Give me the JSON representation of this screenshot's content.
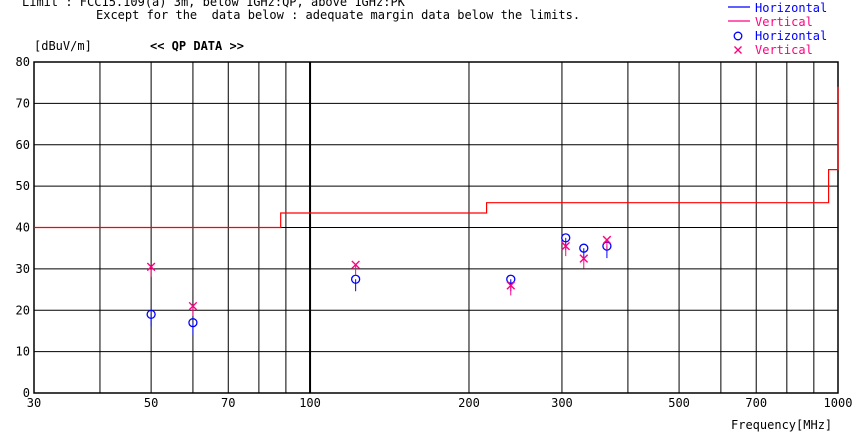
{
  "header": {
    "limit_line": "Limit : FCC15.109(a) 3m, below 1GHz:QP, above 1GHz:PK",
    "note_line": "Except for the  data below : adequate margin data below the limits."
  },
  "legend": {
    "line_horizontal": "Horizontal",
    "line_vertical": "Vertical",
    "marker_horizontal": "Horizontal",
    "marker_vertical": "Vertical"
  },
  "colors": {
    "horizontal": "#0000ff",
    "vertical": "#ff0080",
    "limit": "#ff0000",
    "grid": "#000000"
  },
  "chart_data": {
    "type": "scatter",
    "title": "<< QP DATA >>",
    "ylabel": "[dBuV/m]",
    "xlabel": "Frequency[MHz]",
    "x_scale": "log",
    "xlim": [
      30,
      1000
    ],
    "ylim": [
      0,
      80
    ],
    "grid": true,
    "legend_position": "top-right",
    "x_ticks": [
      30,
      50,
      70,
      100,
      200,
      300,
      500,
      700,
      1000
    ],
    "y_ticks": [
      0,
      10,
      20,
      30,
      40,
      50,
      60,
      70,
      80
    ],
    "limit_line": [
      {
        "x": 30,
        "y": 40
      },
      {
        "x": 88,
        "y": 40
      },
      {
        "x": 88,
        "y": 43.5
      },
      {
        "x": 216,
        "y": 43.5
      },
      {
        "x": 216,
        "y": 46
      },
      {
        "x": 960,
        "y": 46
      },
      {
        "x": 960,
        "y": 54
      },
      {
        "x": 1000,
        "y": 54
      },
      {
        "x": 1000,
        "y": 74
      }
    ],
    "series": [
      {
        "name": "Horizontal",
        "marker": "circle",
        "points": [
          {
            "x": 50,
            "y": 19.0
          },
          {
            "x": 60,
            "y": 17.0
          },
          {
            "x": 122,
            "y": 27.5
          },
          {
            "x": 240,
            "y": 27.5
          },
          {
            "x": 305,
            "y": 37.5
          },
          {
            "x": 330,
            "y": 35.0
          },
          {
            "x": 365,
            "y": 35.5
          }
        ]
      },
      {
        "name": "Vertical",
        "marker": "x",
        "points": [
          {
            "x": 50,
            "y": 30.5
          },
          {
            "x": 60,
            "y": 21.0
          },
          {
            "x": 122,
            "y": 31.0
          },
          {
            "x": 240,
            "y": 26.0
          },
          {
            "x": 305,
            "y": 35.5
          },
          {
            "x": 330,
            "y": 32.5
          },
          {
            "x": 365,
            "y": 37.0
          }
        ]
      }
    ]
  }
}
